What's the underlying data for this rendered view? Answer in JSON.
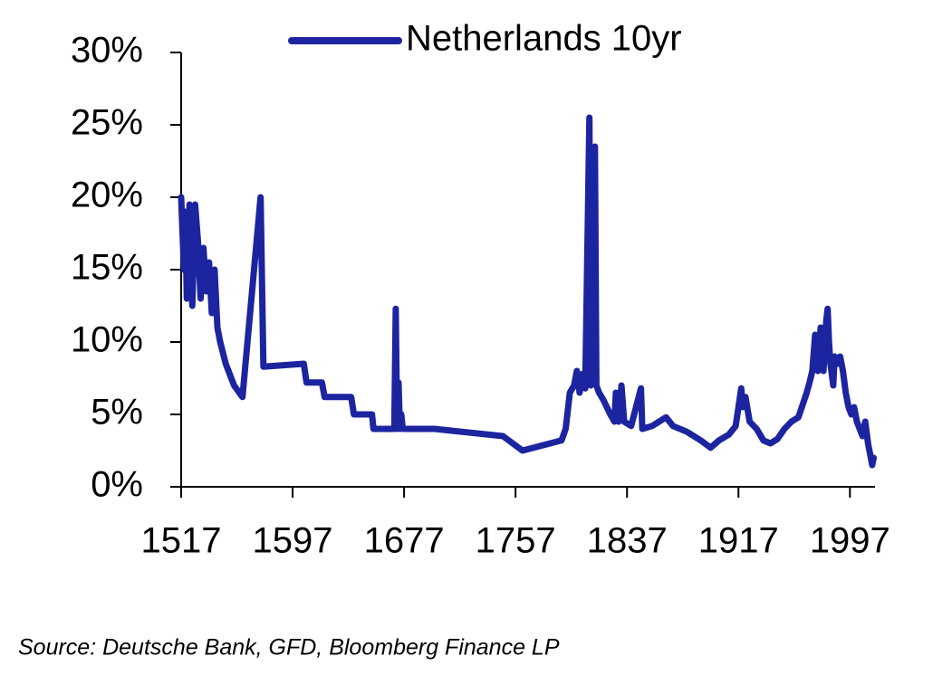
{
  "chart_data": {
    "type": "line",
    "source": "Source: Deutsche Bank, GFD, Bloomberg Finance LP",
    "legend": "top",
    "x": [
      1517,
      1519,
      1520,
      1521,
      1523,
      1525,
      1527,
      1529,
      1531,
      1533,
      1535,
      1537,
      1539,
      1541,
      1543,
      1545,
      1549,
      1555,
      1561,
      1574,
      1576,
      1605,
      1607,
      1618,
      1620,
      1639,
      1641,
      1654,
      1655,
      1670,
      1671,
      1672,
      1673,
      1674,
      1675,
      1676,
      1699,
      1748,
      1762,
      1790,
      1793,
      1796,
      1799,
      1801,
      1803,
      1805,
      1807,
      1810,
      1811,
      1814,
      1815,
      1817,
      1820,
      1825,
      1828,
      1829,
      1831,
      1833,
      1835,
      1840,
      1847,
      1848,
      1855,
      1860,
      1865,
      1870,
      1880,
      1890,
      1897,
      1903,
      1910,
      1915,
      1919,
      1920,
      1922,
      1925,
      1930,
      1935,
      1940,
      1945,
      1950,
      1955,
      1960,
      1966,
      1968,
      1970,
      1972,
      1974,
      1976,
      1978,
      1980,
      1981,
      1982,
      1983,
      1985,
      1986,
      1988,
      1990,
      1992,
      1994,
      1996,
      1998,
      2000,
      2002,
      2004,
      2006,
      2008,
      2010,
      2012,
      2013,
      2014
    ],
    "series": [
      {
        "name": "Netherlands 10yr",
        "color": "#1c24a0",
        "values": [
          20,
          15,
          19,
          13,
          19.5,
          12.5,
          19.5,
          17,
          13,
          16.5,
          13.5,
          15.5,
          12,
          15,
          11,
          10,
          8.5,
          7,
          6.2,
          20,
          8.3,
          8.5,
          7.2,
          7.2,
          6.2,
          6.2,
          5,
          5,
          4,
          4,
          12.3,
          4,
          7.2,
          4,
          5,
          4,
          4,
          3.5,
          2.5,
          3.2,
          4,
          6.5,
          7,
          8,
          6.5,
          7.8,
          6.8,
          25.5,
          7,
          23.5,
          7,
          6.5,
          6,
          5,
          4.5,
          6.5,
          4.5,
          7,
          4.5,
          4.2,
          6.8,
          4,
          4.2,
          4.5,
          4.8,
          4.2,
          3.8,
          3.2,
          2.7,
          3.2,
          3.6,
          4.2,
          6.8,
          5.5,
          6.2,
          4.5,
          4,
          3.2,
          3,
          3.3,
          4,
          4.5,
          4.8,
          6.5,
          7.2,
          8,
          10.5,
          8,
          11,
          8,
          11.5,
          12.3,
          10,
          8.5,
          7,
          9,
          8.5,
          9,
          8,
          6.5,
          5.5,
          5,
          5.5,
          4.5,
          4,
          3.5,
          4.5,
          3,
          2,
          1.5,
          2
        ]
      }
    ],
    "xlim": [
      1517,
      2015
    ],
    "xticks": [
      1517,
      1597,
      1677,
      1757,
      1837,
      1917,
      1997
    ],
    "ylim": [
      0,
      30
    ],
    "yticks": [
      {
        "value": 0,
        "label": "0%"
      },
      {
        "value": 5,
        "label": "5%"
      },
      {
        "value": 10,
        "label": "10%"
      },
      {
        "value": 15,
        "label": "15%"
      },
      {
        "value": 20,
        "label": "20%"
      },
      {
        "value": 25,
        "label": "25%"
      },
      {
        "value": 30,
        "label": "30%"
      }
    ]
  }
}
